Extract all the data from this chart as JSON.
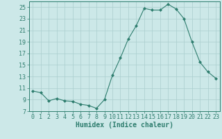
{
  "x": [
    0,
    1,
    2,
    3,
    4,
    5,
    6,
    7,
    8,
    9,
    10,
    11,
    12,
    13,
    14,
    15,
    16,
    17,
    18,
    19,
    20,
    21,
    22,
    23
  ],
  "y": [
    10.5,
    10.2,
    8.8,
    9.2,
    8.8,
    8.7,
    8.2,
    8.0,
    7.5,
    9.0,
    13.2,
    16.2,
    19.5,
    21.8,
    24.8,
    24.5,
    24.5,
    25.5,
    24.7,
    23.0,
    19.0,
    15.5,
    13.8,
    12.7
  ],
  "line_color": "#2e7d6e",
  "marker": "D",
  "marker_size": 2,
  "bg_color": "#cce8e8",
  "grid_color": "#aacece",
  "xlabel": "Humidex (Indice chaleur)",
  "ylim": [
    7,
    26
  ],
  "yticks": [
    7,
    9,
    11,
    13,
    15,
    17,
    19,
    21,
    23,
    25
  ],
  "xticks": [
    0,
    1,
    2,
    3,
    4,
    5,
    6,
    7,
    8,
    9,
    10,
    11,
    12,
    13,
    14,
    15,
    16,
    17,
    18,
    19,
    20,
    21,
    22,
    23
  ],
  "axis_color": "#2e7d6e",
  "tick_color": "#2e7d6e",
  "tick_fontsize": 6,
  "xlabel_fontsize": 7,
  "linewidth": 0.8
}
